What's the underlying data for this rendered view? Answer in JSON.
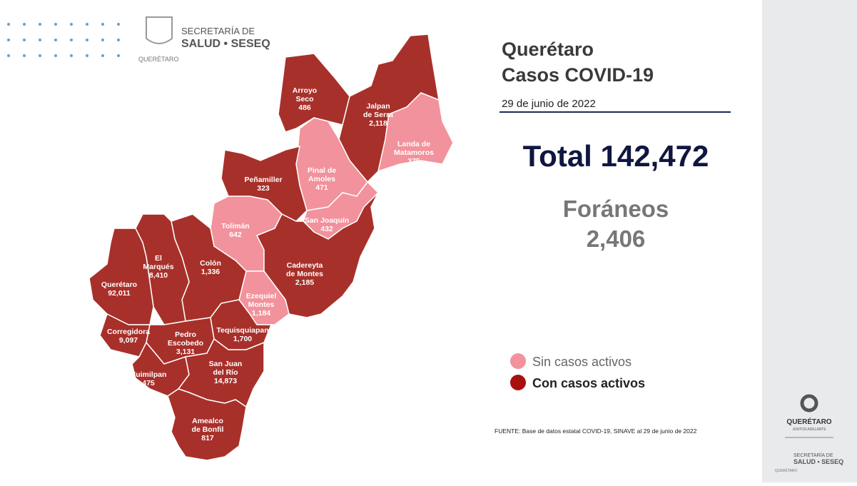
{
  "header": {
    "logo": {
      "line1": "SECRETARÍA DE",
      "line2": "SALUD • SESEQ",
      "line3": "QUERÉTARO"
    }
  },
  "title": {
    "line1": "Querétaro",
    "line2": "Casos COVID-19",
    "date": "29 de junio de 2022"
  },
  "total": "Total 142,472",
  "foraneos": {
    "label": "Foráneos",
    "value": "2,406"
  },
  "legend": {
    "inactive": "Sin casos activos",
    "active": "Con casos activos"
  },
  "source": "FUENTE: Base de datos estatal COVID-19, SINAVE al 29 de junio de 2022",
  "side": {
    "brand": "QUERÉTARO",
    "motto": "JUNTOS ADELANTE",
    "sec1": "SECRETARÍA DE",
    "sec2": "SALUD • SESEQ",
    "sec3": "QUERÉTARO"
  },
  "municipalities": [
    {
      "name": [
        "Arroyo",
        "Seco"
      ],
      "value": "486",
      "active": true
    },
    {
      "name": [
        "Jalpan",
        "de Serra"
      ],
      "value": "2,118",
      "active": true
    },
    {
      "name": [
        "Landa de",
        "Matamoros"
      ],
      "value": "375",
      "active": false
    },
    {
      "name": [
        "Pinal de",
        "Amoles"
      ],
      "value": "471",
      "active": false
    },
    {
      "name": [
        "Peñamiller"
      ],
      "value": "323",
      "active": true
    },
    {
      "name": [
        "San Joaquín"
      ],
      "value": "432",
      "active": false
    },
    {
      "name": [
        "Tolimán"
      ],
      "value": "642",
      "active": false
    },
    {
      "name": [
        "Cadereyta",
        "de Montes"
      ],
      "value": "2,185",
      "active": true
    },
    {
      "name": [
        "Ezequiel",
        "Montes"
      ],
      "value": "1,184",
      "active": false
    },
    {
      "name": [
        "Colón"
      ],
      "value": "1,336",
      "active": true
    },
    {
      "name": [
        "El",
        "Marqués"
      ],
      "value": "8,410",
      "active": true
    },
    {
      "name": [
        "Querétaro"
      ],
      "value": "92,011",
      "active": true
    },
    {
      "name": [
        "Corregidora"
      ],
      "value": "9,097",
      "active": true
    },
    {
      "name": [
        "Pedro",
        "Escobedo"
      ],
      "value": "3,131",
      "active": true
    },
    {
      "name": [
        "Tequisquiapan"
      ],
      "value": "1,700",
      "active": true
    },
    {
      "name": [
        "Huimilpan"
      ],
      "value": "475",
      "active": true
    },
    {
      "name": [
        "San Juan",
        "del Río"
      ],
      "value": "14,873",
      "active": true
    },
    {
      "name": [
        "Amealco",
        "de Bonfil"
      ],
      "value": "817",
      "active": true
    }
  ]
}
